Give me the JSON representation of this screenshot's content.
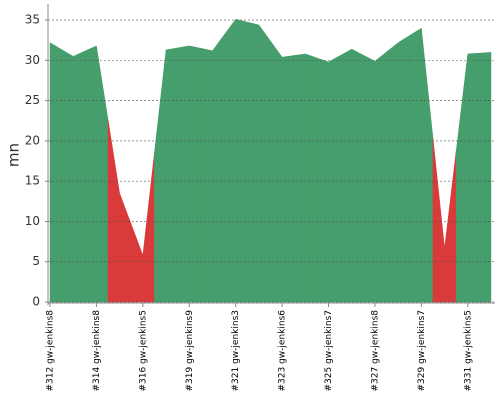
{
  "chart_data": {
    "type": "area",
    "y_label": "mn",
    "categories": [
      "#312 gw-jenkins8",
      null,
      "#314 gw-jenkins8",
      null,
      "#316 gw-jenkins5",
      null,
      "#319 gw-jenkins9",
      null,
      "#321 gw-jenkins3",
      null,
      "#323 gw-jenkins6",
      null,
      "#325 gw-jenkins7",
      null,
      "#327 gw-jenkins8",
      null,
      "#329 gw-jenkins7",
      null,
      "#331 gw-jenkins5",
      null
    ],
    "values": [
      32.2,
      30.5,
      31.8,
      13.5,
      5.8,
      31.3,
      31.8,
      31.2,
      35.1,
      34.4,
      30.4,
      30.8,
      29.8,
      31.4,
      29.9,
      32.2,
      34.0,
      6.7,
      30.8,
      31.0
    ],
    "point_colors": [
      "#459e6b",
      "#459e6b",
      "#459e6b",
      "#d93a3a",
      "#d93a3a",
      "#459e6b",
      "#459e6b",
      "#459e6b",
      "#459e6b",
      "#459e6b",
      "#459e6b",
      "#459e6b",
      "#459e6b",
      "#459e6b",
      "#459e6b",
      "#459e6b",
      "#459e6b",
      "#d93a3a",
      "#459e6b",
      "#459e6b"
    ],
    "ylim": [
      0,
      37
    ],
    "yticks": [
      0,
      5,
      10,
      15,
      20,
      25,
      30,
      35
    ],
    "grid": true
  }
}
